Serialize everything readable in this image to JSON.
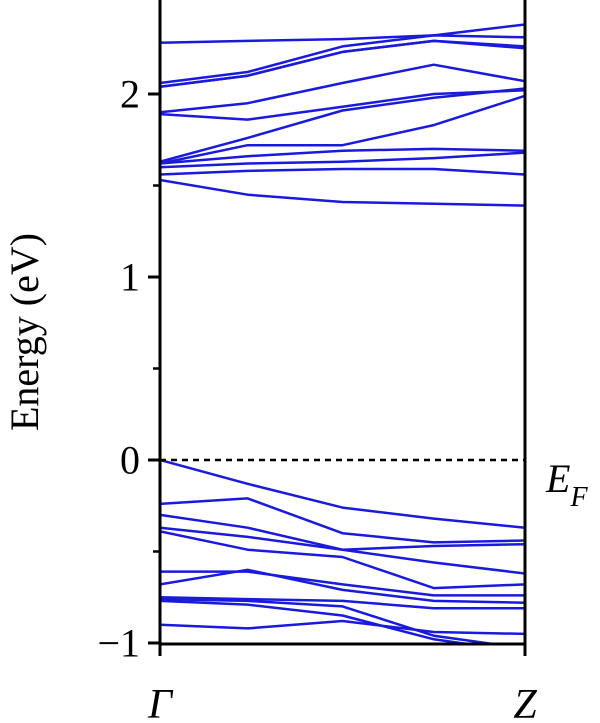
{
  "chart_data": {
    "type": "line",
    "title": "",
    "xlabel": "",
    "ylabel": "Energy (eV)",
    "xlim": [
      0,
      1
    ],
    "ylim": [
      -1,
      2.5
    ],
    "yticks": [
      -1,
      0,
      1,
      2
    ],
    "yticks_minor": [
      -0.5,
      0.5,
      1.5
    ],
    "k_points": [
      {
        "label": "Γ",
        "x": 0
      },
      {
        "label": "Z",
        "x": 1
      }
    ],
    "fermi_level": {
      "value": 0,
      "label": "E",
      "subscript": "F",
      "style": "dashed"
    },
    "series_color": "#1a1adc",
    "x": [
      0,
      0.24,
      0.5,
      0.75,
      1
    ],
    "series": [
      {
        "values": [
          2.28,
          2.29,
          2.3,
          2.32,
          2.38
        ]
      },
      {
        "values": [
          2.06,
          2.12,
          2.26,
          2.32,
          2.31
        ]
      },
      {
        "values": [
          2.04,
          2.1,
          2.23,
          2.29,
          2.26
        ]
      },
      {
        "values": [
          2.04,
          2.1,
          2.23,
          2.29,
          2.25
        ]
      },
      {
        "values": [
          1.9,
          1.95,
          2.06,
          2.16,
          2.07
        ]
      },
      {
        "values": [
          1.89,
          1.86,
          1.93,
          2.0,
          2.02
        ]
      },
      {
        "values": [
          1.63,
          1.76,
          1.91,
          1.98,
          2.03
        ]
      },
      {
        "values": [
          1.62,
          1.72,
          1.72,
          1.83,
          1.99
        ]
      },
      {
        "values": [
          1.62,
          1.66,
          1.69,
          1.7,
          1.69
        ]
      },
      {
        "values": [
          1.6,
          1.62,
          1.63,
          1.65,
          1.68
        ]
      },
      {
        "values": [
          1.56,
          1.58,
          1.59,
          1.59,
          1.56
        ]
      },
      {
        "values": [
          1.53,
          1.45,
          1.41,
          1.4,
          1.39
        ]
      },
      {
        "values": [
          0.0,
          -0.13,
          -0.26,
          -0.32,
          -0.37
        ]
      },
      {
        "values": [
          -0.24,
          -0.21,
          -0.4,
          -0.45,
          -0.44
        ]
      },
      {
        "values": [
          -0.3,
          -0.37,
          -0.49,
          -0.47,
          -0.46
        ]
      },
      {
        "values": [
          -0.37,
          -0.42,
          -0.49,
          -0.56,
          -0.62
        ]
      },
      {
        "values": [
          -0.39,
          -0.49,
          -0.53,
          -0.7,
          -0.68
        ]
      },
      {
        "values": [
          -0.61,
          -0.61,
          -0.68,
          -0.74,
          -0.74
        ]
      },
      {
        "values": [
          -0.68,
          -0.6,
          -0.71,
          -0.77,
          -0.78
        ]
      },
      {
        "values": [
          -0.75,
          -0.76,
          -0.77,
          -0.81,
          -0.81
        ]
      },
      {
        "values": [
          -0.76,
          -0.77,
          -0.8,
          -0.96,
          -1.03
        ]
      },
      {
        "values": [
          -0.77,
          -0.79,
          -0.85,
          -0.98,
          -1.05
        ]
      },
      {
        "values": [
          -0.9,
          -0.92,
          -0.88,
          -0.94,
          -0.95
        ]
      }
    ]
  }
}
